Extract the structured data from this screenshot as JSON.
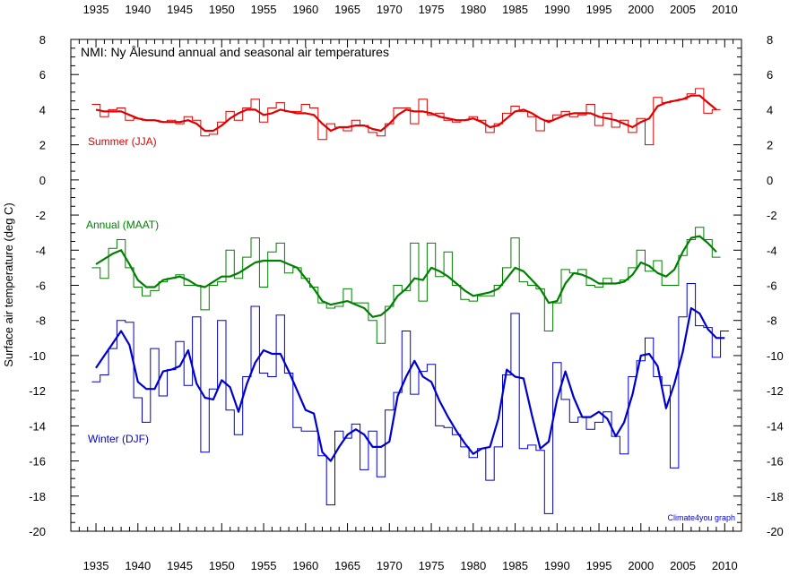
{
  "chart_data": {
    "type": "line",
    "title": "NMI: Ny Ålesund annual and seasonal air temperatures",
    "ylabel": "Surface air temperature (deg C)",
    "xlabel": "",
    "xlim": [
      1932,
      2012
    ],
    "ylim": [
      -20,
      8
    ],
    "xticks": [
      1935,
      1940,
      1945,
      1950,
      1955,
      1960,
      1965,
      1970,
      1975,
      1980,
      1985,
      1990,
      1995,
      2000,
      2005,
      2010
    ],
    "yticks": [
      -20,
      -18,
      -16,
      -14,
      -12,
      -10,
      -8,
      -6,
      -4,
      -2,
      0,
      2,
      4,
      6,
      8
    ],
    "credit": "Climate4you graph",
    "series": [
      {
        "name": "Summer (JJA)",
        "color": "#e00000",
        "years": [
          1935,
          1936,
          1937,
          1938,
          1939,
          1940,
          1941,
          1942,
          1943,
          1944,
          1945,
          1946,
          1947,
          1948,
          1949,
          1950,
          1951,
          1952,
          1953,
          1954,
          1955,
          1956,
          1957,
          1958,
          1959,
          1960,
          1961,
          1962,
          1963,
          1964,
          1965,
          1966,
          1967,
          1968,
          1969,
          1970,
          1971,
          1972,
          1973,
          1974,
          1975,
          1976,
          1977,
          1978,
          1979,
          1980,
          1981,
          1982,
          1983,
          1984,
          1985,
          1986,
          1987,
          1988,
          1989,
          1990,
          1991,
          1992,
          1993,
          1994,
          1995,
          1996,
          1997,
          1998,
          1999,
          2000,
          2001,
          2002,
          2003,
          2004,
          2005,
          2006,
          2007,
          2008,
          2009
        ],
        "annual": [
          4.3,
          3.6,
          4.0,
          4.1,
          3.4,
          3.5,
          3.4,
          3.4,
          3.3,
          3.4,
          3.2,
          3.6,
          3.4,
          2.5,
          2.6,
          3.3,
          3.9,
          3.4,
          4.1,
          4.6,
          3.3,
          4.1,
          4.4,
          3.9,
          3.9,
          4.3,
          4.1,
          2.3,
          3.2,
          3.0,
          2.8,
          3.4,
          3.1,
          2.7,
          2.5,
          3.2,
          4.1,
          4.1,
          3.2,
          4.6,
          3.7,
          3.8,
          3.4,
          3.3,
          3.4,
          3.6,
          3.4,
          2.7,
          3.2,
          3.8,
          4.2,
          3.9,
          3.6,
          2.8,
          3.4,
          3.7,
          3.9,
          3.6,
          3.7,
          4.3,
          3.1,
          3.8,
          3.0,
          3.4,
          2.7,
          3.5,
          2.0,
          4.7,
          4.4,
          4.5,
          4.6,
          4.9,
          5.2,
          3.8,
          4.0
        ],
        "smoothed": [
          4.0,
          3.9,
          3.9,
          3.9,
          3.7,
          3.5,
          3.4,
          3.4,
          3.3,
          3.3,
          3.3,
          3.4,
          3.2,
          2.8,
          2.8,
          3.1,
          3.5,
          3.8,
          4.0,
          4.0,
          3.7,
          3.8,
          4.0,
          3.9,
          3.8,
          3.8,
          3.7,
          3.2,
          2.8,
          3.0,
          3.0,
          3.1,
          3.1,
          2.9,
          2.8,
          3.2,
          3.7,
          4.0,
          3.9,
          3.9,
          3.8,
          3.6,
          3.5,
          3.4,
          3.4,
          3.5,
          3.3,
          3.0,
          3.1,
          3.5,
          3.9,
          4.0,
          3.8,
          3.5,
          3.3,
          3.5,
          3.7,
          3.8,
          3.8,
          3.8,
          3.6,
          3.5,
          3.4,
          3.2,
          3.0,
          3.3,
          3.5,
          4.2,
          4.4,
          4.5,
          4.6,
          4.8,
          4.8,
          4.4,
          4.0
        ]
      },
      {
        "name": "Annual (MAAT)",
        "color": "#008000",
        "years": [
          1935,
          1936,
          1937,
          1938,
          1939,
          1940,
          1941,
          1942,
          1943,
          1944,
          1945,
          1946,
          1947,
          1948,
          1949,
          1950,
          1951,
          1952,
          1953,
          1954,
          1955,
          1956,
          1957,
          1958,
          1959,
          1960,
          1961,
          1962,
          1963,
          1964,
          1965,
          1966,
          1967,
          1968,
          1969,
          1970,
          1971,
          1972,
          1973,
          1974,
          1975,
          1976,
          1977,
          1978,
          1979,
          1980,
          1981,
          1982,
          1983,
          1984,
          1985,
          1986,
          1987,
          1988,
          1989,
          1990,
          1991,
          1992,
          1993,
          1994,
          1995,
          1996,
          1997,
          1998,
          1999,
          2000,
          2001,
          2002,
          2003,
          2004,
          2005,
          2006,
          2007,
          2008,
          2009
        ],
        "annual": [
          -5.0,
          -5.6,
          -3.9,
          -3.4,
          -5.0,
          -6.1,
          -6.6,
          -6.3,
          -5.8,
          -5.6,
          -5.4,
          -6.0,
          -6.0,
          -7.4,
          -6.0,
          -5.8,
          -4.0,
          -5.6,
          -4.4,
          -3.3,
          -6.1,
          -4.1,
          -3.6,
          -5.3,
          -5.0,
          -5.6,
          -6.1,
          -7.0,
          -7.3,
          -7.2,
          -6.2,
          -7.0,
          -7.0,
          -8.0,
          -9.3,
          -7.2,
          -6.0,
          -6.3,
          -3.6,
          -6.9,
          -3.6,
          -5.5,
          -4.1,
          -6.0,
          -6.8,
          -6.9,
          -6.6,
          -6.6,
          -6.0,
          -5.0,
          -3.3,
          -5.8,
          -6.0,
          -6.2,
          -8.6,
          -7.0,
          -5.1,
          -5.3,
          -5.1,
          -6.0,
          -6.1,
          -5.6,
          -5.9,
          -5.7,
          -5.0,
          -4.0,
          -5.2,
          -4.6,
          -6.0,
          -6.0,
          -4.3,
          -3.4,
          -2.7,
          -3.4,
          -4.4
        ],
        "smoothed": [
          -4.8,
          -4.5,
          -4.2,
          -4.0,
          -4.8,
          -5.7,
          -6.1,
          -6.1,
          -5.7,
          -5.6,
          -5.5,
          -5.7,
          -6.0,
          -6.1,
          -5.8,
          -5.5,
          -5.5,
          -5.3,
          -5.0,
          -4.7,
          -4.6,
          -4.6,
          -4.6,
          -4.8,
          -5.0,
          -5.6,
          -6.2,
          -6.9,
          -7.1,
          -7.0,
          -6.9,
          -7.1,
          -7.3,
          -7.8,
          -7.7,
          -7.3,
          -6.6,
          -6.2,
          -5.6,
          -5.7,
          -5.0,
          -5.2,
          -5.5,
          -5.9,
          -6.3,
          -6.6,
          -6.5,
          -6.4,
          -6.2,
          -5.6,
          -5.0,
          -5.2,
          -5.7,
          -6.2,
          -7.0,
          -6.9,
          -5.9,
          -5.3,
          -5.4,
          -5.6,
          -5.9,
          -5.9,
          -5.9,
          -5.8,
          -5.4,
          -4.7,
          -4.9,
          -5.3,
          -5.5,
          -5.1,
          -4.1,
          -3.3,
          -3.2,
          -3.6,
          -4.1
        ]
      },
      {
        "name": "Winter (DJF)",
        "color": "#0000cc",
        "years": [
          1935,
          1936,
          1937,
          1938,
          1939,
          1940,
          1941,
          1942,
          1943,
          1944,
          1945,
          1946,
          1947,
          1948,
          1949,
          1950,
          1951,
          1952,
          1953,
          1954,
          1955,
          1956,
          1957,
          1958,
          1959,
          1960,
          1961,
          1962,
          1963,
          1964,
          1965,
          1966,
          1967,
          1968,
          1969,
          1970,
          1971,
          1972,
          1973,
          1974,
          1975,
          1976,
          1977,
          1978,
          1979,
          1980,
          1981,
          1982,
          1983,
          1984,
          1985,
          1986,
          1987,
          1988,
          1989,
          1990,
          1991,
          1992,
          1993,
          1994,
          1995,
          1996,
          1997,
          1998,
          1999,
          2000,
          2001,
          2002,
          2003,
          2004,
          2005,
          2006,
          2007,
          2008,
          2009,
          2010
        ],
        "annual": [
          -11.5,
          -11.1,
          -9.6,
          -8.0,
          -8.1,
          -12.4,
          -13.8,
          -9.6,
          -12.3,
          -10.8,
          -9.2,
          -11.7,
          -7.8,
          -15.5,
          -11.9,
          -8.0,
          -13.1,
          -14.5,
          -11.2,
          -7.2,
          -11.0,
          -11.2,
          -7.7,
          -11.0,
          -14.1,
          -14.3,
          -14.3,
          -15.7,
          -18.5,
          -14.3,
          -14.7,
          -13.9,
          -16.5,
          -14.3,
          -16.9,
          -13.1,
          -12.1,
          -8.6,
          -12.2,
          -10.9,
          -10.5,
          -14.0,
          -14.1,
          -14.5,
          -15.2,
          -15.8,
          -15.3,
          -17.1,
          -15.2,
          -11.1,
          -7.6,
          -15.3,
          -15.1,
          -15.4,
          -19.0,
          -10.4,
          -12.5,
          -13.8,
          -13.5,
          -14.2,
          -13.8,
          -13.2,
          -14.6,
          -15.6,
          -11.2,
          -10.3,
          -9.0,
          -11.2,
          -11.7,
          -16.4,
          -7.8,
          -5.9,
          -8.3,
          -8.4,
          -10.1,
          -8.6
        ],
        "smoothed": [
          -10.7,
          -10.0,
          -9.3,
          -8.6,
          -9.4,
          -11.5,
          -11.9,
          -11.9,
          -10.9,
          -10.8,
          -10.6,
          -9.7,
          -11.6,
          -12.4,
          -12.5,
          -11.4,
          -11.8,
          -13.2,
          -11.6,
          -10.4,
          -9.7,
          -9.9,
          -9.9,
          -10.9,
          -12.0,
          -13.1,
          -13.3,
          -15.5,
          -16.0,
          -15.2,
          -14.5,
          -14.2,
          -14.5,
          -15.2,
          -15.2,
          -14.9,
          -12.3,
          -11.2,
          -10.3,
          -11.2,
          -11.5,
          -12.6,
          -13.5,
          -14.3,
          -15.0,
          -15.6,
          -15.3,
          -15.2,
          -13.6,
          -10.8,
          -11.2,
          -11.3,
          -13.4,
          -15.3,
          -14.9,
          -12.5,
          -10.9,
          -12.4,
          -13.5,
          -13.5,
          -13.2,
          -13.6,
          -14.6,
          -13.8,
          -12.2,
          -10.0,
          -9.9,
          -10.6,
          -13.0,
          -11.6,
          -9.8,
          -7.3,
          -7.6,
          -8.5,
          -9.0,
          -9.0
        ]
      }
    ]
  },
  "series_label_positions": [
    "upper",
    "middle",
    "lower"
  ]
}
